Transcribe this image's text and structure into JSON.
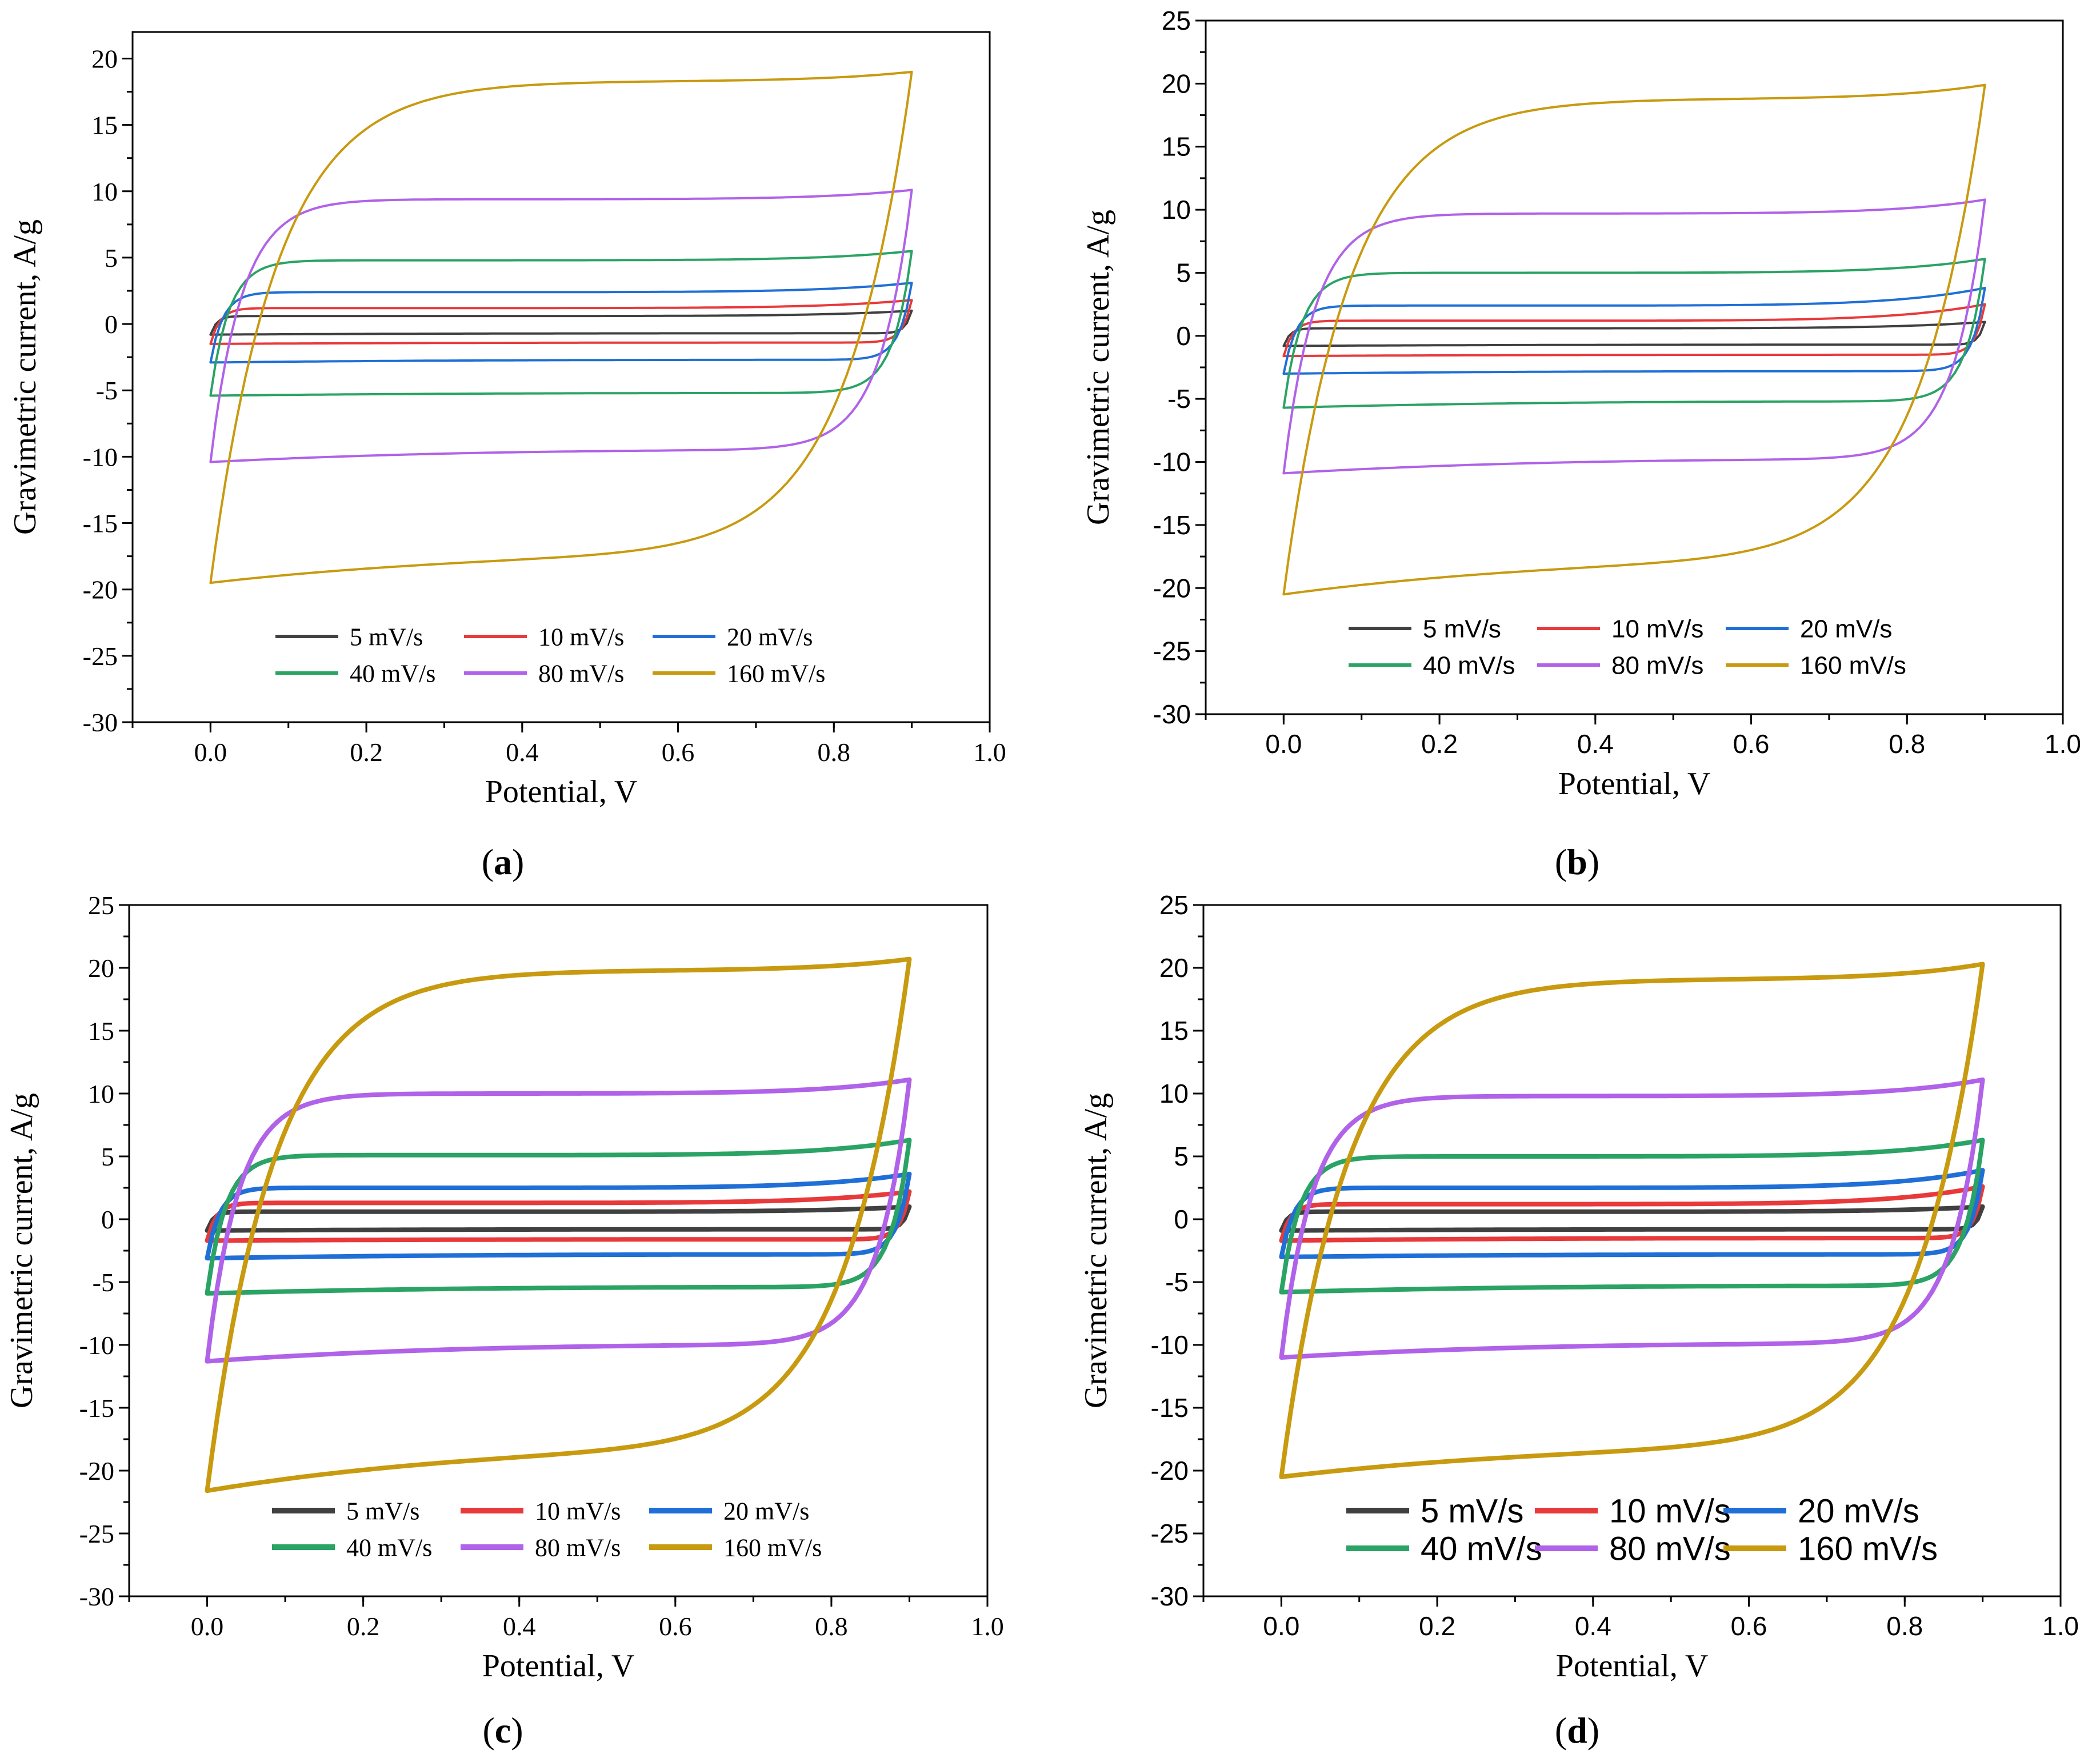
{
  "figure": {
    "panel_labels": [
      "a",
      "b",
      "c",
      "d"
    ]
  },
  "colors": {
    "5 mV/s": "#404040",
    "10 mV/s": "#e8393b",
    "20 mV/s": "#1f6fd6",
    "40 mV/s": "#2aa364",
    "80 mV/s": "#b062e8",
    "160 mV/s": "#c89a10",
    "axis": "#000000"
  },
  "chart_data": [
    {
      "panel": "a",
      "type": "line",
      "xlabel": "Potential, V",
      "ylabel": "Gravimetric current, A/g",
      "xlim": [
        -0.1,
        1.0
      ],
      "ylim": [
        -30,
        22
      ],
      "xticks": [
        "0.0",
        "0.2",
        "0.4",
        "0.6",
        "0.8",
        "1.0"
      ],
      "yticks": [
        "-30",
        "-25",
        "-20",
        "-15",
        "-10",
        "-5",
        "0",
        "5",
        "10",
        "15",
        "20"
      ],
      "legend": "bottom-center",
      "series": [
        {
          "name": "5 mV/s",
          "plateau_top": 0.6,
          "plateau_bottom": -0.7,
          "end_top": 1.0,
          "start_bottom": -0.8
        },
        {
          "name": "10 mV/s",
          "plateau_top": 1.2,
          "plateau_bottom": -1.4,
          "end_top": 1.8,
          "start_bottom": -1.5
        },
        {
          "name": "20 mV/s",
          "plateau_top": 2.4,
          "plateau_bottom": -2.7,
          "end_top": 3.1,
          "start_bottom": -2.9
        },
        {
          "name": "40 mV/s",
          "plateau_top": 4.8,
          "plateau_bottom": -5.2,
          "end_top": 5.5,
          "start_bottom": -5.4
        },
        {
          "name": "80 mV/s",
          "plateau_top": 9.4,
          "plateau_bottom": -9.5,
          "end_top": 10.1,
          "start_bottom": -10.4
        },
        {
          "name": "160 mV/s",
          "plateau_top": 18.3,
          "plateau_bottom": -17.5,
          "end_top": 19.0,
          "start_bottom": -19.5
        }
      ]
    },
    {
      "panel": "b",
      "type": "line",
      "xlabel": "Potential, V",
      "ylabel": "Gravimetric current, A/g",
      "xlim": [
        -0.1,
        1.0
      ],
      "ylim": [
        -30,
        25
      ],
      "xticks": [
        "0.0",
        "0.2",
        "0.4",
        "0.6",
        "0.8",
        "1.0"
      ],
      "yticks": [
        "-30",
        "-25",
        "-20",
        "-15",
        "-10",
        "-5",
        "0",
        "5",
        "10",
        "15",
        "20",
        "25"
      ],
      "legend": "bottom-center",
      "series": [
        {
          "name": "5 mV/s",
          "plateau_top": 0.6,
          "plateau_bottom": -0.7,
          "end_top": 1.1,
          "start_bottom": -0.8
        },
        {
          "name": "10 mV/s",
          "plateau_top": 1.2,
          "plateau_bottom": -1.5,
          "end_top": 2.5,
          "start_bottom": -1.6
        },
        {
          "name": "20 mV/s",
          "plateau_top": 2.4,
          "plateau_bottom": -2.8,
          "end_top": 3.8,
          "start_bottom": -3.0
        },
        {
          "name": "40 mV/s",
          "plateau_top": 5.0,
          "plateau_bottom": -5.2,
          "end_top": 6.1,
          "start_bottom": -5.7
        },
        {
          "name": "80 mV/s",
          "plateau_top": 9.7,
          "plateau_bottom": -9.8,
          "end_top": 10.8,
          "start_bottom": -10.9
        },
        {
          "name": "160 mV/s",
          "plateau_top": 18.8,
          "plateau_bottom": -18.0,
          "end_top": 19.9,
          "start_bottom": -20.5
        }
      ]
    },
    {
      "panel": "c",
      "type": "line",
      "xlabel": "Potential, V",
      "ylabel": "Gravimetric current, A/g",
      "xlim": [
        -0.1,
        1.0
      ],
      "ylim": [
        -30,
        25
      ],
      "xticks": [
        "0.0",
        "0.2",
        "0.4",
        "0.6",
        "0.8",
        "1.0"
      ],
      "yticks": [
        "-30",
        "-25",
        "-20",
        "-15",
        "-10",
        "-5",
        "0",
        "5",
        "10",
        "15",
        "20",
        "25"
      ],
      "legend": "bottom-center",
      "series": [
        {
          "name": "5 mV/s",
          "plateau_top": 0.6,
          "plateau_bottom": -0.8,
          "end_top": 1.0,
          "start_bottom": -0.9
        },
        {
          "name": "10 mV/s",
          "plateau_top": 1.3,
          "plateau_bottom": -1.6,
          "end_top": 2.2,
          "start_bottom": -1.7
        },
        {
          "name": "20 mV/s",
          "plateau_top": 2.5,
          "plateau_bottom": -2.8,
          "end_top": 3.6,
          "start_bottom": -3.1
        },
        {
          "name": "40 mV/s",
          "plateau_top": 5.1,
          "plateau_bottom": -5.4,
          "end_top": 6.3,
          "start_bottom": -5.9
        },
        {
          "name": "80 mV/s",
          "plateau_top": 10.0,
          "plateau_bottom": -10.0,
          "end_top": 11.1,
          "start_bottom": -11.3
        },
        {
          "name": "160 mV/s",
          "plateau_top": 19.8,
          "plateau_bottom": -18.5,
          "end_top": 20.7,
          "start_bottom": -21.6
        }
      ]
    },
    {
      "panel": "d",
      "type": "line",
      "xlabel": "Potential, V",
      "ylabel": "Gravimetric current, A/g",
      "xlim": [
        -0.1,
        1.0
      ],
      "ylim": [
        -30,
        25
      ],
      "xticks": [
        "0.0",
        "0.2",
        "0.4",
        "0.6",
        "0.8",
        "1.0"
      ],
      "yticks": [
        "-30",
        "-25",
        "-20",
        "-15",
        "-10",
        "-5",
        "0",
        "5",
        "10",
        "15",
        "20",
        "25"
      ],
      "legend": "bottom-center",
      "series": [
        {
          "name": "5 mV/s",
          "plateau_top": 0.6,
          "plateau_bottom": -0.8,
          "end_top": 1.0,
          "start_bottom": -0.9
        },
        {
          "name": "10 mV/s",
          "plateau_top": 1.2,
          "plateau_bottom": -1.5,
          "end_top": 2.6,
          "start_bottom": -1.7
        },
        {
          "name": "20 mV/s",
          "plateau_top": 2.5,
          "plateau_bottom": -2.8,
          "end_top": 3.9,
          "start_bottom": -3.0
        },
        {
          "name": "40 mV/s",
          "plateau_top": 5.0,
          "plateau_bottom": -5.3,
          "end_top": 6.3,
          "start_bottom": -5.8
        },
        {
          "name": "80 mV/s",
          "plateau_top": 9.8,
          "plateau_bottom": -9.9,
          "end_top": 11.1,
          "start_bottom": -11.0
        },
        {
          "name": "160 mV/s",
          "plateau_top": 19.1,
          "plateau_bottom": -18.3,
          "end_top": 20.3,
          "start_bottom": -20.5
        }
      ]
    }
  ]
}
